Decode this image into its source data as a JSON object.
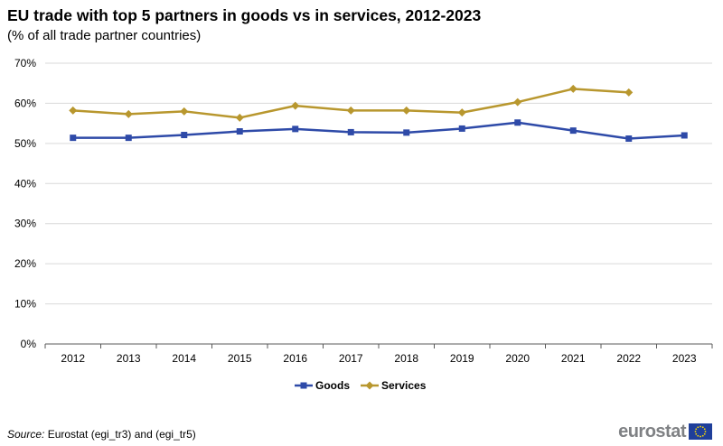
{
  "header": {
    "title": "EU trade with top 5 partners in goods vs in services, 2012-2023",
    "subtitle": "(% of all trade partner countries)"
  },
  "footer": {
    "source_label": "Source:",
    "source_text": " Eurostat (egi_tr3) and (egi_tr5)",
    "logo_text": "eurostat"
  },
  "colors": {
    "goods": "#2e4aa8",
    "services": "#b8972e",
    "grid": "#d9d9d9",
    "axis": "#595959"
  },
  "chart_data": {
    "type": "line",
    "title": "EU trade with top 5 partners in goods vs in services, 2012-2023",
    "subtitle": "(% of all trade partner countries)",
    "xlabel": "",
    "ylabel": "",
    "categories": [
      "2012",
      "2013",
      "2014",
      "2015",
      "2016",
      "2017",
      "2018",
      "2019",
      "2020",
      "2021",
      "2022",
      "2023"
    ],
    "yticks": [
      0,
      10,
      20,
      30,
      40,
      50,
      60,
      70
    ],
    "ytick_labels": [
      "0%",
      "10%",
      "20%",
      "30%",
      "40%",
      "50%",
      "60%",
      "70%"
    ],
    "ylim": [
      0,
      70
    ],
    "grid": true,
    "legend_position": "bottom",
    "series": [
      {
        "name": "Goods",
        "marker": "square",
        "color": "#2e4aa8",
        "values": [
          51.4,
          51.4,
          52.1,
          53.0,
          53.6,
          52.8,
          52.7,
          53.7,
          55.2,
          53.2,
          51.2,
          52.0
        ]
      },
      {
        "name": "Services",
        "marker": "diamond",
        "color": "#b8972e",
        "values": [
          58.2,
          57.3,
          58.0,
          56.4,
          59.4,
          58.2,
          58.2,
          57.7,
          60.3,
          63.6,
          62.7,
          null
        ]
      }
    ]
  }
}
